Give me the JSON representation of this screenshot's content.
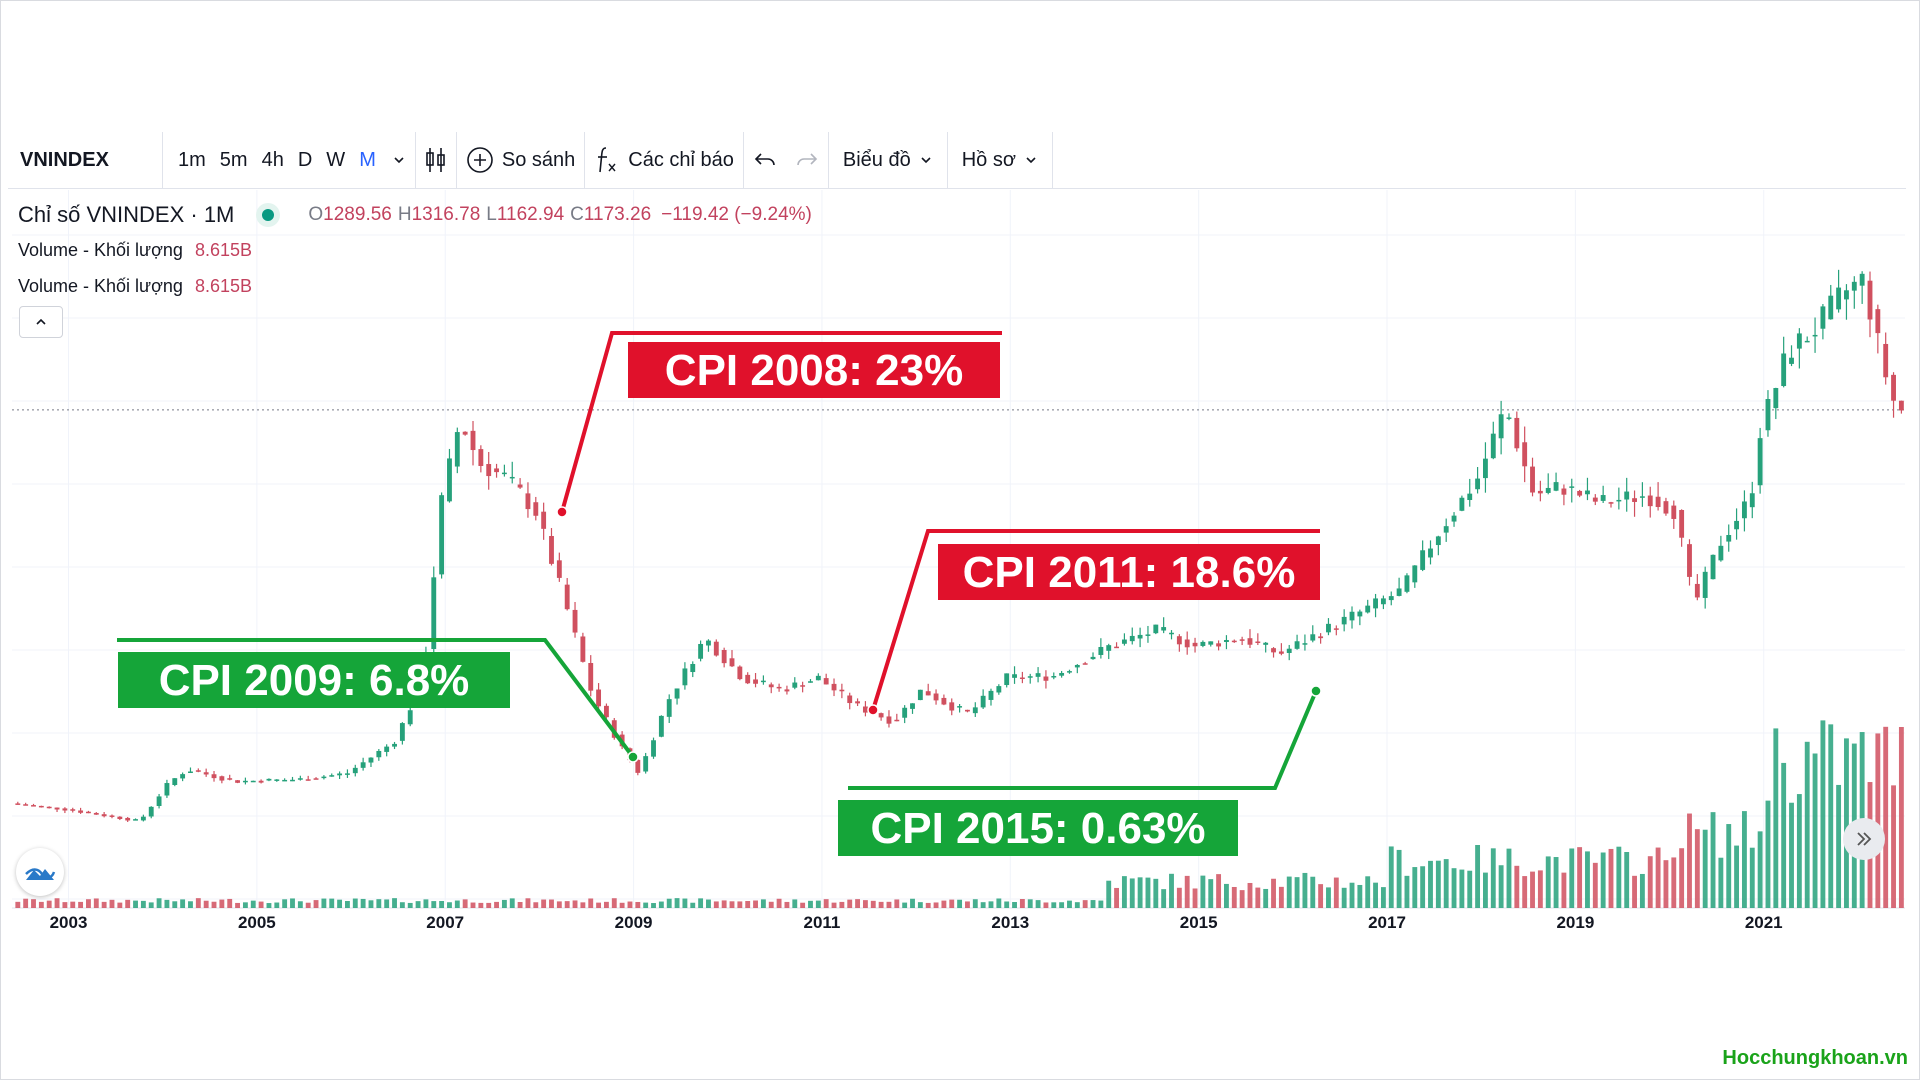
{
  "toolbar": {
    "symbol": "VNINDEX",
    "intervals": [
      "1m",
      "5m",
      "4h",
      "D",
      "W",
      "M"
    ],
    "active_interval": "M",
    "compare_label": "So sánh",
    "indicators_label": "Các chỉ báo",
    "chart_label": "Biểu đồ",
    "profile_label": "Hồ sơ"
  },
  "legend": {
    "title": "Chỉ số VNINDEX · 1M",
    "open_k": "O",
    "open": "1289.56",
    "high_k": "H",
    "high": "1316.78",
    "low_k": "L",
    "low": "1162.94",
    "close_k": "C",
    "close": "1173.26",
    "change": "−119.42 (−9.24%)",
    "volume_label_1": "Volume - Khối lượng",
    "volume_value_1": "8.615B",
    "volume_label_2": "Volume - Khối lượng",
    "volume_value_2": "8.615B"
  },
  "watermark": "Hocchungkhoan.vn",
  "colors": {
    "up": "#26a17b",
    "down": "#d0505f",
    "red_label": "#e0112b",
    "green_label": "#15a539",
    "axis_text": "#131722"
  },
  "chart_data": {
    "type": "candlestick",
    "title": "Chỉ số VNINDEX · 1M",
    "x_ticks": [
      "2003",
      "2005",
      "2007",
      "2009",
      "2011",
      "2013",
      "2015",
      "2017",
      "2019",
      "2021"
    ],
    "x_range": [
      2002.4,
      2022.5
    ],
    "y_range_index": [
      80,
      1550
    ],
    "reference_line": 1173.26,
    "price_path": [
      [
        2002.4,
        185
      ],
      [
        2003.0,
        170
      ],
      [
        2003.8,
        140
      ],
      [
        2004.1,
        235
      ],
      [
        2004.3,
        270
      ],
      [
        2004.8,
        240
      ],
      [
        2005.5,
        245
      ],
      [
        2006.0,
        260
      ],
      [
        2006.5,
        340
      ],
      [
        2006.8,
        490
      ],
      [
        2007.0,
        940
      ],
      [
        2007.2,
        1150
      ],
      [
        2007.4,
        1040
      ],
      [
        2007.7,
        1000
      ],
      [
        2008.0,
        920
      ],
      [
        2008.3,
        700
      ],
      [
        2008.6,
        460
      ],
      [
        2008.9,
        330
      ],
      [
        2009.1,
        260
      ],
      [
        2009.4,
        440
      ],
      [
        2009.8,
        600
      ],
      [
        2010.2,
        500
      ],
      [
        2010.6,
        470
      ],
      [
        2011.0,
        500
      ],
      [
        2011.4,
        430
      ],
      [
        2011.8,
        390
      ],
      [
        2012.1,
        470
      ],
      [
        2012.4,
        430
      ],
      [
        2012.6,
        410
      ],
      [
        2013.0,
        500
      ],
      [
        2013.5,
        505
      ],
      [
        2014.1,
        580
      ],
      [
        2014.6,
        620
      ],
      [
        2015.0,
        580
      ],
      [
        2015.5,
        600
      ],
      [
        2015.9,
        560
      ],
      [
        2016.3,
        610
      ],
      [
        2016.8,
        670
      ],
      [
        2017.2,
        720
      ],
      [
        2017.6,
        870
      ],
      [
        2018.0,
        1000
      ],
      [
        2018.3,
        1180
      ],
      [
        2018.6,
        960
      ],
      [
        2018.9,
        980
      ],
      [
        2019.3,
        940
      ],
      [
        2019.8,
        960
      ],
      [
        2020.1,
        920
      ],
      [
        2020.3,
        680
      ],
      [
        2020.6,
        850
      ],
      [
        2020.9,
        950
      ],
      [
        2021.0,
        1120
      ],
      [
        2021.3,
        1320
      ],
      [
        2021.6,
        1380
      ],
      [
        2021.9,
        1470
      ],
      [
        2022.1,
        1500
      ],
      [
        2022.3,
        1290
      ],
      [
        2022.45,
        1173
      ]
    ],
    "annotations": [
      {
        "text": "CPI 2008: 23%",
        "color": "red",
        "year": 2008.2,
        "price": 930
      },
      {
        "text": "CPI 2011: 18.6%",
        "color": "red",
        "year": 2011.5,
        "price": 480
      },
      {
        "text": "CPI 2009: 6.8%",
        "color": "green",
        "year": 2009.05,
        "price": 330
      },
      {
        "text": "CPI 2015: 0.63%",
        "color": "green",
        "year": 2016.2,
        "price": 560
      }
    ]
  }
}
